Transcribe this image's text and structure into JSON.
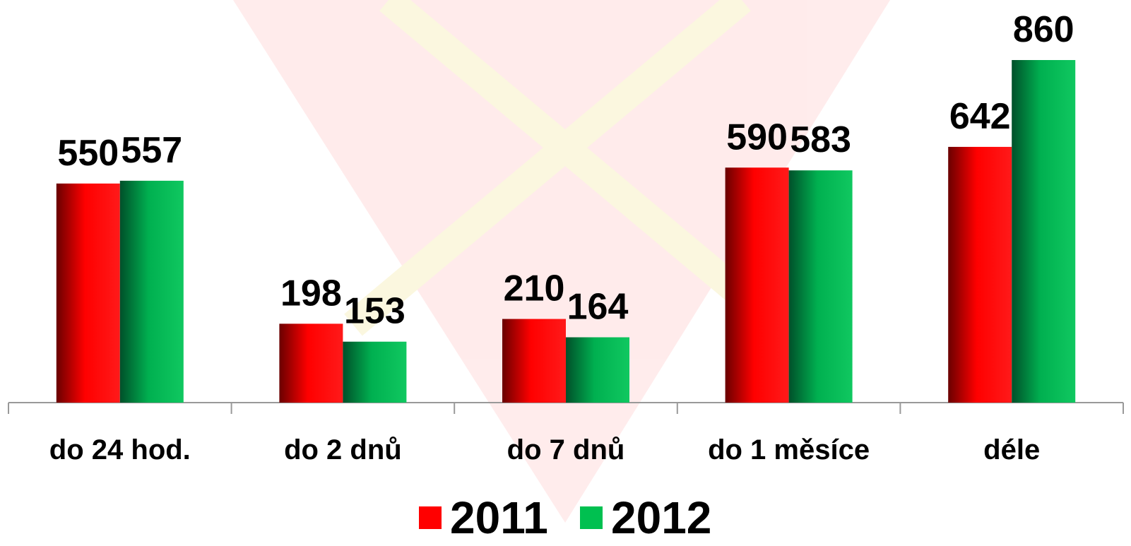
{
  "chart_data": {
    "type": "bar",
    "categories": [
      "do 24 hod.",
      "do 2 dnů",
      "do 7 dnů",
      "do 1 měsíce",
      "déle"
    ],
    "series": [
      {
        "name": "2011",
        "color": "#ff0000",
        "values": [
          550,
          198,
          210,
          590,
          642
        ]
      },
      {
        "name": "2012",
        "color": "#00c050",
        "values": [
          557,
          153,
          164,
          583,
          860
        ]
      }
    ]
  }
}
